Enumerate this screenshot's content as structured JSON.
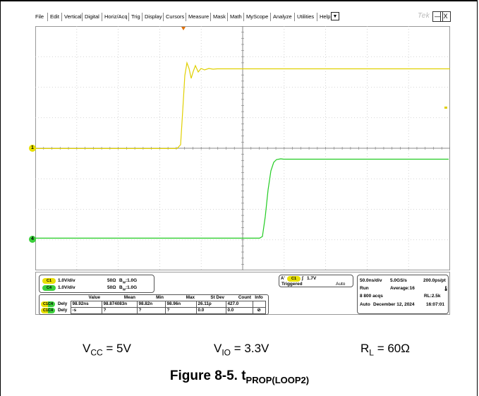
{
  "menu": {
    "items": [
      "File",
      "Edit",
      "Vertical",
      "Digital",
      "Horiz/Acq",
      "Trig",
      "Display",
      "Cursors",
      "Measure",
      "Mask",
      "Math",
      "MyScope",
      "Analyze",
      "Utilities",
      "Help"
    ],
    "dropdown_glyph": "▼",
    "brand": "Tek",
    "minimize_glyph": "—",
    "close_glyph": "X"
  },
  "plot": {
    "ch1_marker": "1",
    "ch4_marker": "4",
    "ch1_color": "#e0d000",
    "ch4_color": "#22cc22",
    "trigger_marker_color": "#e07000"
  },
  "channels": [
    {
      "pill": "C1",
      "scale": "1.0V/div",
      "impedance": "50Ω",
      "bw": "B",
      "bw_sub": "W",
      "bw_val": ":1.0G"
    },
    {
      "pill": "C4",
      "scale": "1.0V/div",
      "impedance": "50Ω",
      "bw": "B",
      "bw_sub": "W",
      "bw_val": ":1.0G"
    }
  ],
  "trigger": {
    "a_label": "A'",
    "pill": "C1",
    "edge_glyph": "∫",
    "level": "1.7V",
    "state": "Triggered",
    "mode": "Auto"
  },
  "timebase": {
    "horiz": "50.0ns/div",
    "rate": "5.0GS/s",
    "res": "200.0ps/pt",
    "run": "Run",
    "average": "Average:16",
    "acqs": "8 800 acqs",
    "rl": "RL:2.5k",
    "auto": "Auto",
    "date": "December 12, 2024",
    "time": "16:07:01"
  },
  "measurements": {
    "headers": [
      "Value",
      "Mean",
      "Min",
      "Max",
      "St Dev",
      "Count",
      "Info"
    ],
    "rows": [
      {
        "pill": "C1C4",
        "label": "Dely",
        "cells": [
          "98.92ns",
          "98.874083n",
          "98.82n",
          "98.96n",
          "26.11p",
          "427.0",
          ""
        ]
      },
      {
        "pill": "C1C4",
        "label": "Dely",
        "cells": [
          "-s",
          "?",
          "?",
          "?",
          "0.0",
          "0.0",
          ""
        ]
      }
    ]
  },
  "caption": {
    "vcc": "V",
    "vcc_sub": "CC",
    "vcc_val": " = 5V",
    "vio": "V",
    "vio_sub": "IO",
    "vio_val": " = 3.3V",
    "rl": "R",
    "rl_sub": "L",
    "rl_val": " = 60Ω",
    "figure_prefix": "Figure 8-5. t",
    "figure_sub": "PROP(LOOP2)"
  }
}
